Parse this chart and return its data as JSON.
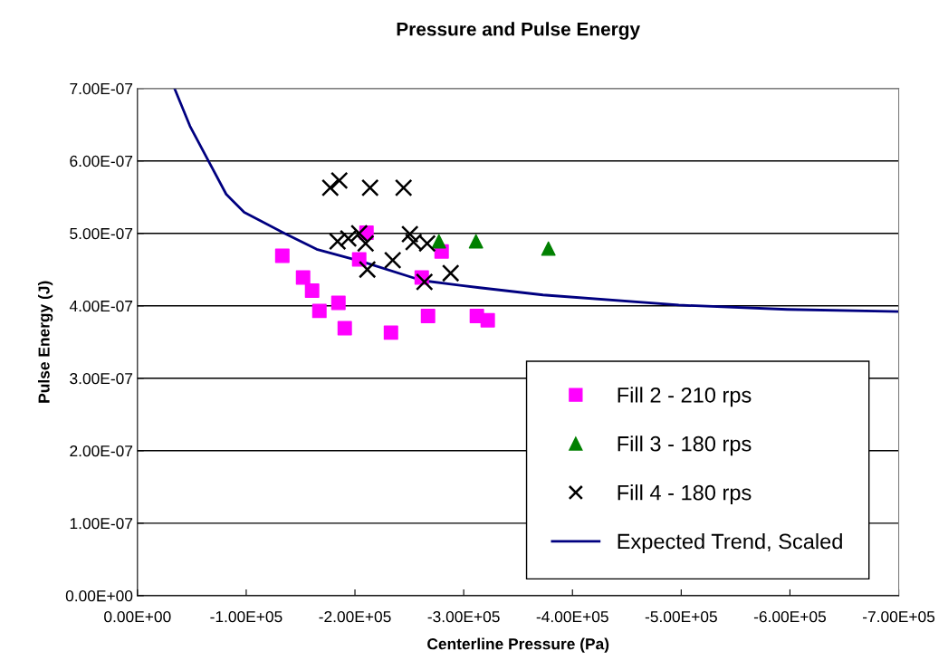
{
  "chart_data": {
    "type": "scatter",
    "title": "Pressure and Pulse Energy",
    "xlabel": "Centerline Pressure (Pa)",
    "ylabel": "Pulse Energy (J)",
    "xlim": [
      0,
      -700000
    ],
    "ylim": [
      0,
      7e-07
    ],
    "xticks": [
      {
        "value": 0,
        "label": "0.00E+00"
      },
      {
        "value": -100000,
        "label": "-1.00E+05"
      },
      {
        "value": -200000,
        "label": "-2.00E+05"
      },
      {
        "value": -300000,
        "label": "-3.00E+05"
      },
      {
        "value": -400000,
        "label": "-4.00E+05"
      },
      {
        "value": -500000,
        "label": "-5.00E+05"
      },
      {
        "value": -600000,
        "label": "-6.00E+05"
      },
      {
        "value": -700000,
        "label": "-7.00E+05"
      }
    ],
    "yticks": [
      {
        "value": 0,
        "label": "0.00E+00"
      },
      {
        "value": 1e-07,
        "label": "1.00E-07"
      },
      {
        "value": 2e-07,
        "label": "2.00E-07"
      },
      {
        "value": 3e-07,
        "label": "3.00E-07"
      },
      {
        "value": 4e-07,
        "label": "4.00E-07"
      },
      {
        "value": 5e-07,
        "label": "5.00E-07"
      },
      {
        "value": 6e-07,
        "label": "6.00E-07"
      },
      {
        "value": 7e-07,
        "label": "7.00E-07"
      }
    ],
    "grid": "y",
    "legend": "bottom right",
    "series": [
      {
        "name": "Fill 2 - 210 rps",
        "marker": "square",
        "color": "#ff00ff",
        "x": [
          -133200,
          -152300,
          -160600,
          -167300,
          -184800,
          -190600,
          -210600,
          -203900,
          -233100,
          -261400,
          -279700,
          -267200,
          -312100,
          -322100
        ],
        "values": [
          4.69e-07,
          4.39e-07,
          4.21e-07,
          3.93e-07,
          4.04e-07,
          3.69e-07,
          5.01e-07,
          4.64e-07,
          3.63e-07,
          4.39e-07,
          4.75e-07,
          3.86e-07,
          3.86e-07,
          3.8e-07
        ]
      },
      {
        "name": "Fill 3 - 180 rps",
        "marker": "triangle",
        "color": "#008000",
        "x": [
          -277200,
          -311300,
          -377900
        ],
        "values": [
          4.89e-07,
          4.89e-07,
          4.79e-07
        ]
      },
      {
        "name": "Fill 4 - 180 rps",
        "marker": "cross",
        "color": "#000000",
        "x": [
          -177300,
          -185600,
          -213900,
          -244700,
          -184000,
          -193900,
          -203900,
          -209800,
          -250500,
          -253900,
          -266400,
          -211400,
          -234700,
          -263900,
          -288000
        ],
        "values": [
          5.63e-07,
          5.73e-07,
          5.63e-07,
          5.63e-07,
          4.89e-07,
          4.93e-07,
          5e-07,
          4.86e-07,
          4.99e-07,
          4.88e-07,
          4.86e-07,
          4.5e-07,
          4.63e-07,
          4.33e-07,
          4.45e-07
        ]
      },
      {
        "name": "Expected Trend, Scaled",
        "type": "line",
        "marker": "none",
        "color": "#000080",
        "x": [
          -34100,
          -48300,
          -64900,
          -81600,
          -98200,
          -134000,
          -164800,
          -206400,
          -261400,
          -314600,
          -372900,
          -497700,
          -597600,
          -700000
        ],
        "values": [
          7e-07,
          6.48e-07,
          6.01e-07,
          5.54e-07,
          5.29e-07,
          5.01e-07,
          4.78e-07,
          4.61e-07,
          4.35e-07,
          4.25e-07,
          4.15e-07,
          4.01e-07,
          3.95e-07,
          3.92e-07
        ]
      }
    ]
  }
}
